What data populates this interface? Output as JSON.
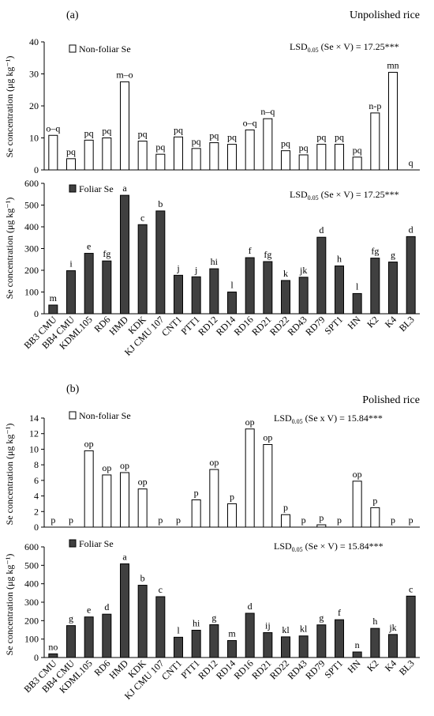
{
  "colors": {
    "foliar": "#404040",
    "non_foliar": "#ffffff",
    "stroke": "#000000"
  },
  "varieties": [
    "BB3 CMU",
    "BB4 CMU",
    "KDML105",
    "RD6",
    "HMD",
    "KDK",
    "KJ CMU 107",
    "CNT1",
    "PTT1",
    "RD12",
    "RD14",
    "RD16",
    "RD21",
    "RD22",
    "RD43",
    "RD79",
    "SPT1",
    "HN",
    "K2",
    "K4",
    "BL3"
  ],
  "y_axis_label": "Se concentration (μg kg⁻¹)",
  "chart_data": [
    {
      "type": "bar",
      "panel": "(a)",
      "title": "Unpolished rice",
      "series": [
        {
          "name": "Non-foliar Se",
          "values": [
            10.8,
            3.5,
            9.3,
            10,
            27.5,
            9,
            4.9,
            10.3,
            6.7,
            8.5,
            8,
            12.5,
            16,
            6,
            4.7,
            8,
            8,
            4,
            17.8,
            30.5,
            0
          ]
        }
      ],
      "letters": [
        "o–q",
        "pq",
        "pq",
        "pq",
        "m–o",
        "pq",
        "pq",
        "pq",
        "pq",
        "pq",
        "pq",
        "o–q",
        "n–q",
        "pq",
        "pq",
        "pq",
        "pq",
        "pq",
        "n-p",
        "mn",
        "q"
      ],
      "lsd": "LSD",
      "lsd_sub": "0.05",
      "lsd_rest": " (Se × V) = 17.25***",
      "ylim": [
        0,
        40
      ],
      "yticks": [
        "0",
        "10",
        "20",
        "30",
        "40"
      ]
    },
    {
      "type": "bar",
      "panel": "",
      "title": "",
      "series": [
        {
          "name": "Foliar Se",
          "values": [
            40,
            198,
            278,
            243,
            545,
            410,
            473,
            177,
            170,
            207,
            100,
            258,
            240,
            153,
            168,
            352,
            220,
            93,
            256,
            238,
            355
          ]
        }
      ],
      "letters": [
        "m",
        "i",
        "e",
        "fg",
        "a",
        "c",
        "b",
        "j",
        "j",
        "hi",
        "l",
        "f",
        "fg",
        "k",
        "jk",
        "d",
        "h",
        "l",
        "fg",
        "g",
        "d"
      ],
      "lsd": "LSD",
      "lsd_sub": "0.05",
      "lsd_rest": " (Se × V) = 17.25***",
      "ylim": [
        0,
        600
      ],
      "yticks": [
        "0",
        "100",
        "200",
        "300",
        "400",
        "500",
        "600"
      ]
    },
    {
      "type": "bar",
      "panel": "(b)",
      "title": "Polished rice",
      "series": [
        {
          "name": "Non-foliar Se",
          "values": [
            0,
            0,
            9.8,
            6.7,
            7,
            4.9,
            0,
            0,
            3.5,
            7.4,
            3,
            12.6,
            10.6,
            1.6,
            0,
            0.3,
            0,
            5.9,
            2.5,
            0,
            0
          ]
        }
      ],
      "letters": [
        "p",
        "p",
        "op",
        "op",
        "op",
        "op",
        "p",
        "p",
        "p",
        "op",
        "p",
        "op",
        "op",
        "p",
        "p",
        "p",
        "p",
        "op",
        "p",
        "p",
        "p"
      ],
      "lsd": "LSD",
      "lsd_sub": "0.05",
      "lsd_rest": " (Se x V) = 15.84***",
      "ylim": [
        0,
        14
      ],
      "yticks": [
        "0",
        "2",
        "4",
        "6",
        "8",
        "10",
        "12",
        "14"
      ]
    },
    {
      "type": "bar",
      "panel": "",
      "title": "",
      "series": [
        {
          "name": "Foliar Se",
          "values": [
            20,
            173,
            220,
            235,
            508,
            392,
            330,
            110,
            148,
            178,
            92,
            240,
            135,
            112,
            117,
            177,
            205,
            30,
            158,
            125,
            333
          ]
        }
      ],
      "letters": [
        "no",
        "g",
        "e",
        "d",
        "a",
        "b",
        "c",
        "l",
        "hi",
        "g",
        "m",
        "d",
        "ij",
        "kl",
        "kl",
        "g",
        "f",
        "n",
        "h",
        "jk",
        "c"
      ],
      "lsd": "LSD",
      "lsd_sub": "0.05",
      "lsd_rest": " (Se × V) = 15.84***",
      "ylim": [
        0,
        600
      ],
      "yticks": [
        "0",
        "100",
        "200",
        "300",
        "400",
        "500",
        "600"
      ]
    }
  ]
}
